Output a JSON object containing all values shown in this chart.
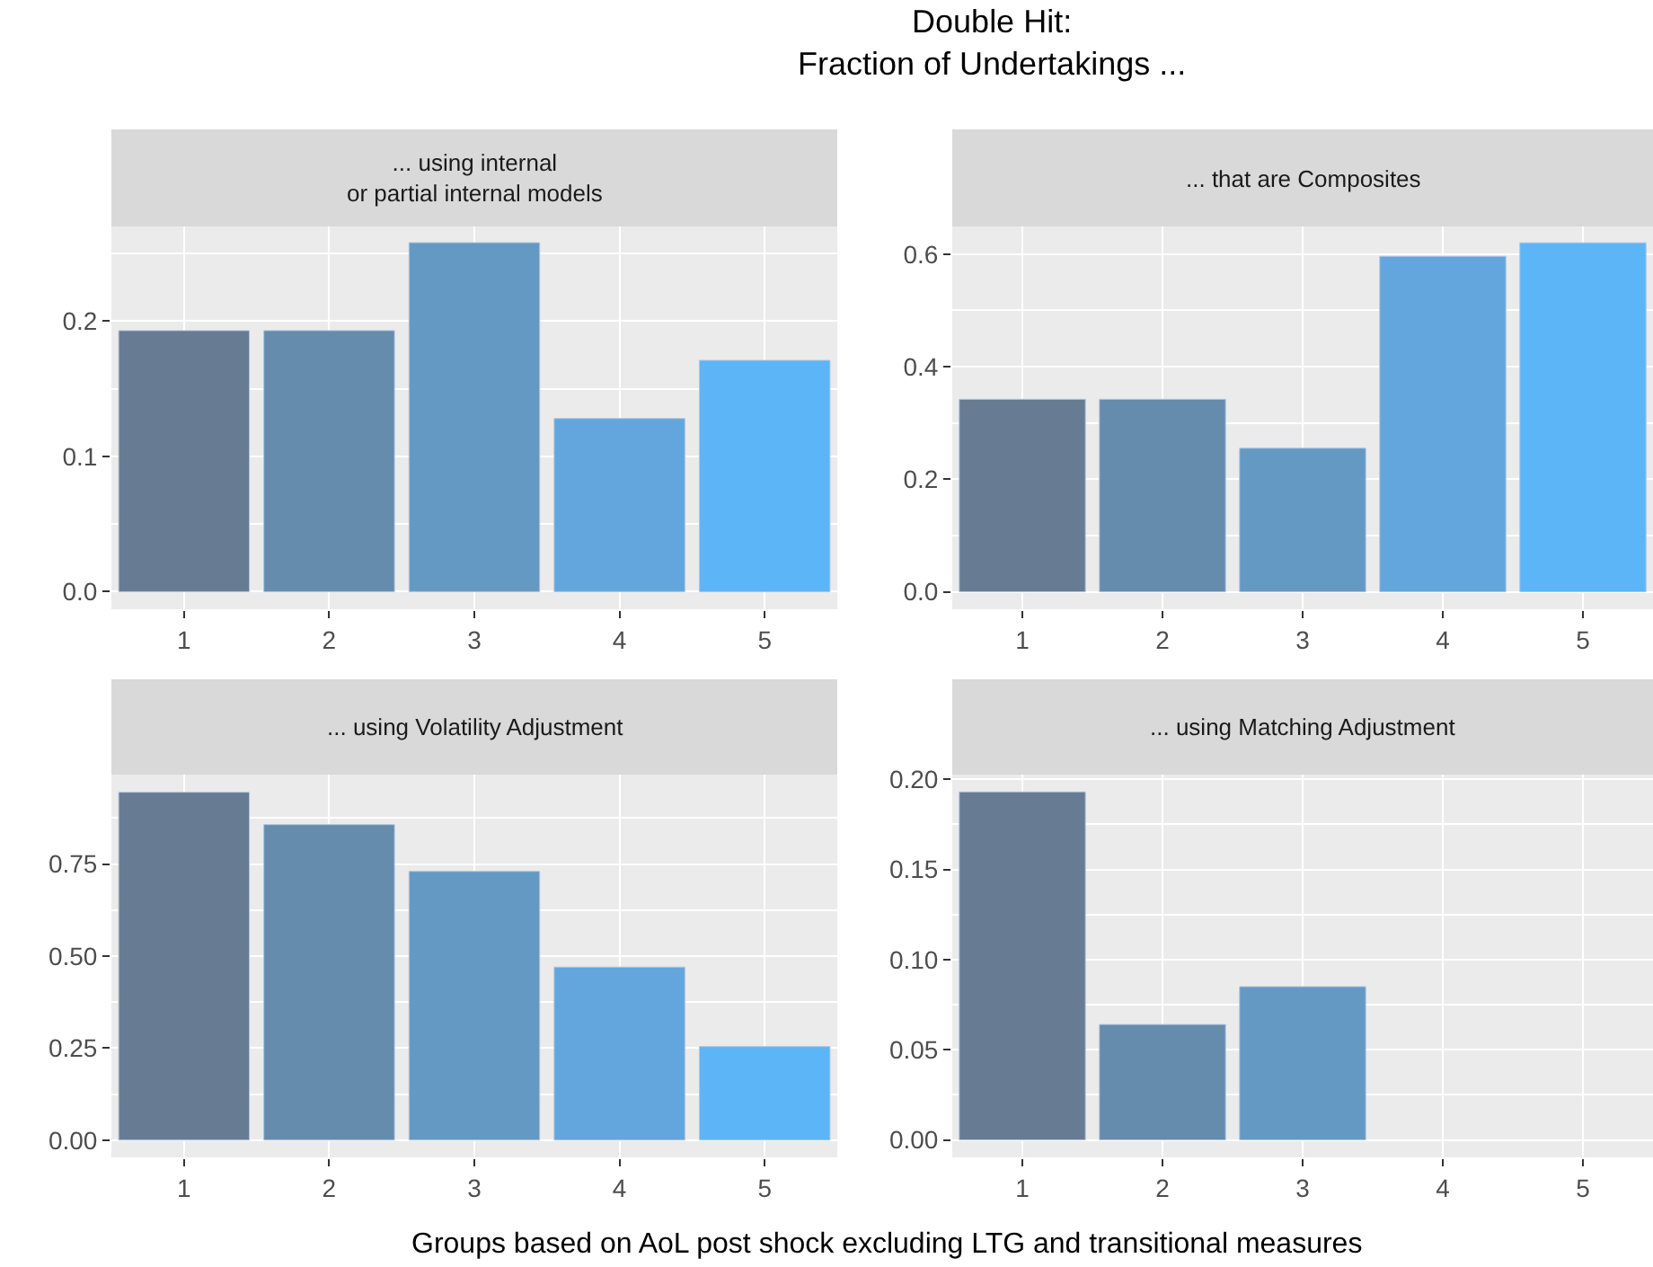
{
  "chart_data": [
    {
      "type": "bar",
      "title": "... using internal\nor partial internal models",
      "annotations": [
        "Double Hit:\nFraction of Undertakings ..."
      ],
      "categories": [
        "1",
        "2",
        "3",
        "4",
        "5"
      ],
      "values": [
        0.193,
        0.193,
        0.258,
        0.128,
        0.171
      ],
      "colors": [
        "#677b93",
        "#658bad",
        "#6499c4",
        "#62a6dd",
        "#5cb5f7"
      ],
      "ylim": [
        -0.013,
        0.27
      ],
      "yticks": [
        {
          "value": 0,
          "label": "0.0"
        },
        0.1,
        0.2
      ],
      "grid": true
    },
    {
      "type": "bar",
      "title": "... that are Composites",
      "categories": [
        "1",
        "2",
        "3",
        "4",
        "5"
      ],
      "values": [
        0.342,
        0.342,
        0.255,
        0.596,
        0.62
      ],
      "colors": [
        "#677b93",
        "#658bad",
        "#6499c4",
        "#62a6dd",
        "#5cb5f7"
      ],
      "ylim": [
        -0.031,
        0.649
      ],
      "yticks": [
        {
          "value": 0,
          "label": "0.0"
        },
        0.2,
        0.4,
        0.6
      ],
      "grid": true
    },
    {
      "type": "bar",
      "title": "... using Volatility Adjustment",
      "xlabel": "Groups based on AoL post shock excluding LTG and transitional measures",
      "categories": [
        "1",
        "2",
        "3",
        "4",
        "5"
      ],
      "values": [
        0.945,
        0.857,
        0.73,
        0.47,
        0.254
      ],
      "colors": [
        "#677b93",
        "#658bad",
        "#6499c4",
        "#62a6dd",
        "#5cb5f7"
      ],
      "ylim": [
        -0.047,
        0.993
      ],
      "yticks": [
        {
          "value": 0,
          "label": "0.00"
        },
        {
          "value": 0.25,
          "label": "0.25"
        },
        {
          "value": 0.5,
          "label": "0.50"
        },
        {
          "value": 0.75,
          "label": "0.75"
        }
      ],
      "grid": true
    },
    {
      "type": "bar",
      "title": "... using Matching Adjustment",
      "categories": [
        "1",
        "2",
        "3",
        "4",
        "5"
      ],
      "values": [
        0.193,
        0.064,
        0.085,
        null,
        null
      ],
      "colors": [
        "#677b93",
        "#658bad",
        "#6499c4",
        "#62a6dd",
        "#5cb5f7"
      ],
      "ylim": [
        -0.0097,
        0.2026
      ],
      "yticks": [
        {
          "value": 0,
          "label": "0.00"
        },
        {
          "value": 0.05,
          "label": "0.05"
        },
        {
          "value": 0.1,
          "label": "0.10"
        },
        {
          "value": 0.15,
          "label": "0.15"
        },
        {
          "value": 0.2,
          "label": "0.20"
        }
      ],
      "grid": true
    }
  ]
}
